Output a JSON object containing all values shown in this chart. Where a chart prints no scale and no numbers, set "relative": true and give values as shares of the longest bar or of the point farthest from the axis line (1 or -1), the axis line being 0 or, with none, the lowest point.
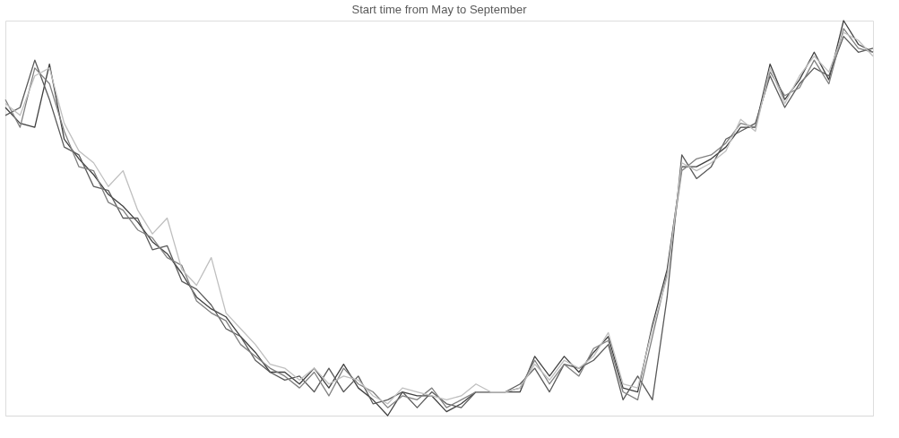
{
  "chart_data": {
    "type": "line",
    "title": "Start time from May to September",
    "relative": true,
    "grid": false,
    "marker": "none",
    "line_style": "solid",
    "categories": [
      null,
      null,
      null,
      null,
      null,
      null,
      null,
      null,
      null,
      null,
      null,
      null,
      null,
      null,
      null,
      null,
      null,
      null,
      null,
      null,
      null,
      null,
      null,
      null,
      null,
      null,
      null,
      null,
      null,
      null,
      null,
      null,
      null,
      null,
      null,
      null,
      null,
      null,
      null,
      null,
      null,
      null,
      null,
      null,
      null,
      null,
      null,
      null,
      null,
      null,
      null,
      null,
      null,
      null,
      null,
      null,
      null,
      null,
      null,
      null
    ],
    "series": [
      {
        "color": "#404040",
        "values": [
          0.78,
          0.74,
          0.73,
          0.89,
          0.7,
          0.65,
          0.61,
          0.56,
          0.53,
          0.49,
          0.44,
          0.41,
          0.36,
          0.3,
          0.27,
          0.25,
          0.2,
          0.16,
          0.11,
          0.11,
          0.08,
          0.12,
          0.07,
          0.13,
          0.07,
          0.04,
          0.0,
          0.06,
          0.05,
          0.05,
          0.01,
          0.03,
          0.06,
          0.06,
          0.06,
          0.06,
          0.15,
          0.1,
          0.15,
          0.11,
          0.16,
          0.2,
          0.07,
          0.06,
          0.23,
          0.37,
          0.63,
          0.63,
          0.65,
          0.68,
          0.73,
          0.73,
          0.89,
          0.8,
          0.85,
          0.92,
          0.85,
          1.0,
          0.94,
          0.92
        ]
      },
      {
        "color": "#5a5a5a",
        "values": [
          0.76,
          0.78,
          0.9,
          0.8,
          0.68,
          0.66,
          0.58,
          0.57,
          0.5,
          0.5,
          0.42,
          0.43,
          0.34,
          0.32,
          0.28,
          0.22,
          0.2,
          0.14,
          0.11,
          0.09,
          0.1,
          0.06,
          0.12,
          0.06,
          0.1,
          0.03,
          0.04,
          0.06,
          0.02,
          0.06,
          0.03,
          0.02,
          0.06,
          0.06,
          0.06,
          0.08,
          0.12,
          0.06,
          0.13,
          0.12,
          0.14,
          0.18,
          0.04,
          0.1,
          0.04,
          0.3,
          0.66,
          0.6,
          0.63,
          0.7,
          0.72,
          0.74,
          0.86,
          0.78,
          0.84,
          0.88,
          0.86,
          0.96,
          0.92,
          0.93
        ]
      },
      {
        "color": "#808080",
        "values": [
          0.8,
          0.73,
          0.88,
          0.84,
          0.72,
          0.63,
          0.62,
          0.54,
          0.52,
          0.47,
          0.45,
          0.4,
          0.38,
          0.29,
          0.26,
          0.24,
          0.18,
          0.15,
          0.12,
          0.1,
          0.07,
          0.11,
          0.05,
          0.12,
          0.08,
          0.06,
          0.02,
          0.05,
          0.04,
          0.07,
          0.02,
          0.04,
          0.06,
          0.06,
          0.06,
          0.07,
          0.14,
          0.08,
          0.13,
          0.1,
          0.17,
          0.19,
          0.06,
          0.04,
          0.2,
          0.36,
          0.62,
          0.65,
          0.66,
          0.69,
          0.74,
          0.73,
          0.87,
          0.81,
          0.83,
          0.9,
          0.84,
          0.98,
          0.93,
          0.92
        ]
      },
      {
        "color": "#bfbfbf",
        "values": [
          0.79,
          0.76,
          0.86,
          0.88,
          0.74,
          0.67,
          0.64,
          0.58,
          0.62,
          0.52,
          0.46,
          0.5,
          0.37,
          0.33,
          0.4,
          0.26,
          0.22,
          0.18,
          0.13,
          0.12,
          0.09,
          0.12,
          0.08,
          0.1,
          0.09,
          0.05,
          0.03,
          0.07,
          0.06,
          0.05,
          0.04,
          0.05,
          0.08,
          0.06,
          0.06,
          0.07,
          0.13,
          0.09,
          0.14,
          0.12,
          0.15,
          0.21,
          0.08,
          0.07,
          0.22,
          0.35,
          0.64,
          0.62,
          0.64,
          0.67,
          0.75,
          0.72,
          0.88,
          0.79,
          0.86,
          0.91,
          0.87,
          0.97,
          0.95,
          0.91
        ]
      }
    ]
  }
}
